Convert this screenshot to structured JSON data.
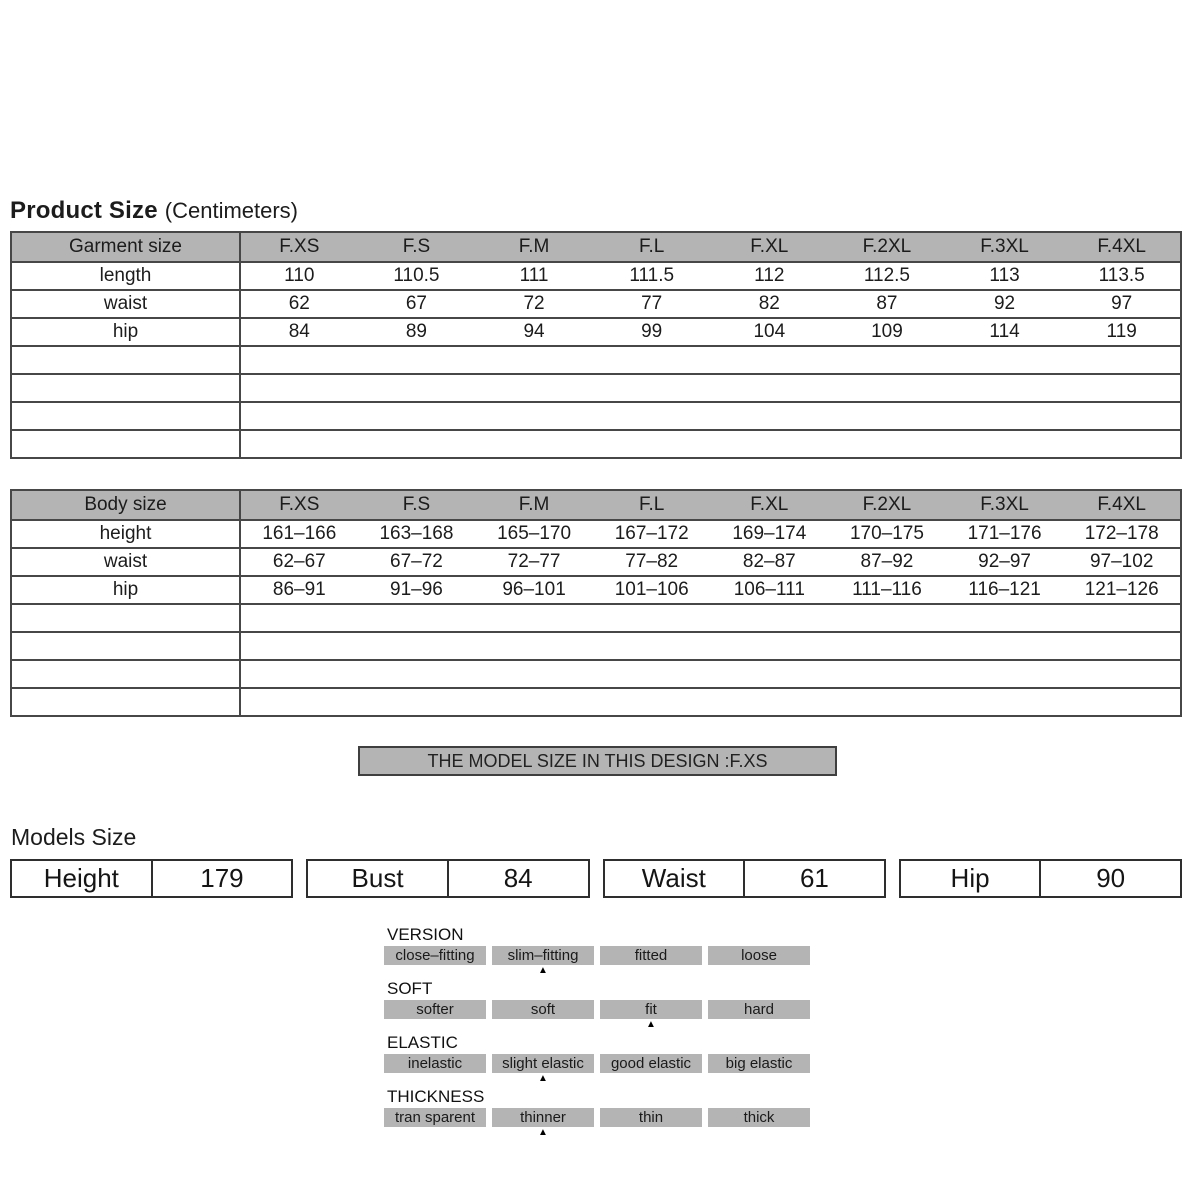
{
  "title": {
    "bold": "Product Size",
    "normal": "(Centimeters)"
  },
  "sizes": [
    "F.XS",
    "F.S",
    "F.M",
    "F.L",
    "F.XL",
    "F.2XL",
    "F.3XL",
    "F.4XL"
  ],
  "garment_table": {
    "corner_label": "Garment size",
    "rows": [
      {
        "label": "length",
        "values": [
          "110",
          "110.5",
          "111",
          "111.5",
          "112",
          "112.5",
          "113",
          "113.5"
        ]
      },
      {
        "label": "waist",
        "values": [
          "62",
          "67",
          "72",
          "77",
          "82",
          "87",
          "92",
          "97"
        ]
      },
      {
        "label": "hip",
        "values": [
          "84",
          "89",
          "94",
          "99",
          "104",
          "109",
          "114",
          "119"
        ]
      }
    ],
    "empty_rows": 4
  },
  "body_table": {
    "corner_label": "Body size",
    "rows": [
      {
        "label": "height",
        "values": [
          "161–166",
          "163–168",
          "165–170",
          "167–172",
          "169–174",
          "170–175",
          "171–176",
          "172–178"
        ]
      },
      {
        "label": "waist",
        "values": [
          "62–67",
          "67–72",
          "72–77",
          "77–82",
          "82–87",
          "87–92",
          "92–97",
          "97–102"
        ]
      },
      {
        "label": "hip",
        "values": [
          "86–91",
          "91–96",
          "96–101",
          "101–106",
          "106–111",
          "111–116",
          "116–121",
          "121–126"
        ]
      }
    ],
    "empty_rows": 4
  },
  "model_banner": "THE MODEL SIZE IN THIS DESIGN :F.XS",
  "models_size": {
    "heading": "Models Size",
    "stats": [
      {
        "label": "Height",
        "value": "179"
      },
      {
        "label": "Bust",
        "value": "84"
      },
      {
        "label": "Waist",
        "value": "61"
      },
      {
        "label": "Hip",
        "value": "90"
      }
    ]
  },
  "attributes": [
    {
      "name": "VERSION",
      "options": [
        "close–fitting",
        "slim–fitting",
        "fitted",
        "loose"
      ],
      "selected_index": 1
    },
    {
      "name": "SOFT",
      "options": [
        "softer",
        "soft",
        "fit",
        "hard"
      ],
      "selected_index": 2
    },
    {
      "name": "ELASTIC",
      "options": [
        "inelastic",
        "slight elastic",
        "good elastic",
        "big elastic"
      ],
      "selected_index": 1
    },
    {
      "name": "THICKNESS",
      "options": [
        "tran sparent",
        "thinner",
        "thin",
        "thick"
      ],
      "selected_index": 1
    }
  ],
  "marker_icon": "▲",
  "colors": {
    "cell_gray": "#b4b4b4",
    "border_dark": "#474747"
  }
}
